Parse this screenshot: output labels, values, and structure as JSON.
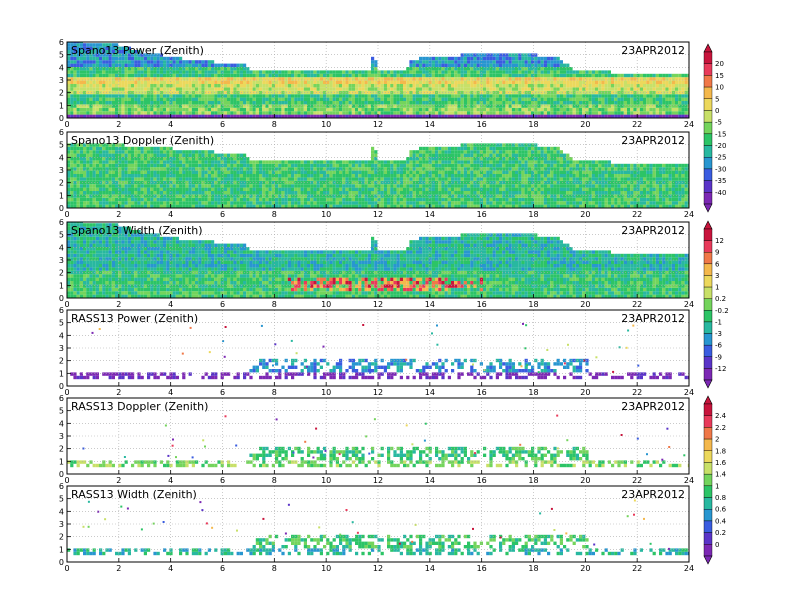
{
  "figure": {
    "date_label": "23APR2012"
  },
  "chart_data": [
    {
      "type": "heatmap",
      "title": "Spano13 Power (Zenith)",
      "date": "23APR2012",
      "x_ticks": [
        0,
        2,
        4,
        6,
        8,
        10,
        12,
        14,
        16,
        18,
        20,
        22,
        24
      ],
      "y_ticks": [
        0,
        1,
        2,
        3,
        4,
        5,
        6
      ],
      "xlim": [
        0,
        24
      ],
      "ylim": [
        0,
        6
      ],
      "grid": true,
      "colorbar_ticks": [
        "20",
        "15",
        "10",
        "5",
        "0",
        "-5",
        "-15",
        "-20",
        "-25",
        "-30",
        "-35",
        "-40"
      ],
      "colorbar_colors": [
        "#c8143c",
        "#e83a5a",
        "#f07848",
        "#f4b84c",
        "#ecd85c",
        "#c8e068",
        "#74d45c",
        "#2cc466",
        "#28b8a0",
        "#2896d0",
        "#3a5ce0",
        "#5a34c8",
        "#7c28b4"
      ],
      "top_profile": [
        [
          0,
          6.0
        ],
        [
          1.8,
          5.7
        ],
        [
          3.0,
          5.0
        ],
        [
          3.8,
          4.8
        ],
        [
          4.5,
          4.5
        ],
        [
          5.5,
          4.3
        ],
        [
          6.8,
          4.2
        ],
        [
          7.0,
          3.6
        ],
        [
          11.6,
          3.6
        ],
        [
          11.8,
          5.2
        ],
        [
          11.9,
          3.6
        ],
        [
          13.0,
          3.6
        ],
        [
          13.2,
          4.5
        ],
        [
          15.0,
          4.8
        ],
        [
          16.0,
          5.0
        ],
        [
          18.5,
          4.8
        ],
        [
          19.0,
          4.5
        ],
        [
          19.5,
          3.6
        ],
        [
          22.0,
          3.4
        ],
        [
          24.0,
          3.3
        ]
      ],
      "bands": [
        {
          "y0": 0.0,
          "y1": 0.25,
          "level": 12
        },
        {
          "y0": 0.25,
          "y1": 1.0,
          "level": 6
        },
        {
          "y0": 1.0,
          "y1": 1.7,
          "level": 7
        },
        {
          "y0": 1.7,
          "y1": 2.6,
          "level": 5
        },
        {
          "y0": 2.6,
          "y1": 3.2,
          "level": 4
        },
        {
          "y0": 3.2,
          "y1": 4.0,
          "level": 7
        },
        {
          "y0": 4.0,
          "y1": 6.0,
          "level": 9
        }
      ]
    },
    {
      "type": "heatmap",
      "title": "Spano13 Doppler (Zenith)",
      "date": "23APR2012",
      "x_ticks": [
        0,
        2,
        4,
        6,
        8,
        10,
        12,
        14,
        16,
        18,
        20,
        22,
        24
      ],
      "y_ticks": [
        0,
        1,
        2,
        3,
        4,
        5,
        6
      ],
      "xlim": [
        0,
        24
      ],
      "ylim": [
        0,
        6
      ],
      "grid": true,
      "top_profile": [
        [
          0,
          5.0
        ],
        [
          1.8,
          4.9
        ],
        [
          3.0,
          4.7
        ],
        [
          4.5,
          4.5
        ],
        [
          5.5,
          4.3
        ],
        [
          6.8,
          4.2
        ],
        [
          7.0,
          3.6
        ],
        [
          11.6,
          3.6
        ],
        [
          11.8,
          5.2
        ],
        [
          11.9,
          3.6
        ],
        [
          13.0,
          3.6
        ],
        [
          13.2,
          4.5
        ],
        [
          15.0,
          4.8
        ],
        [
          16.0,
          5.0
        ],
        [
          18.5,
          4.8
        ],
        [
          19.0,
          4.5
        ],
        [
          19.5,
          3.6
        ],
        [
          22.0,
          3.4
        ],
        [
          24.0,
          3.3
        ]
      ],
      "bands": [
        {
          "y0": 0.0,
          "y1": 6.0,
          "level": 7
        }
      ]
    },
    {
      "type": "heatmap",
      "title": "Spano13 Width (Zenith)",
      "date": "23APR2012",
      "x_ticks": [
        0,
        2,
        4,
        6,
        8,
        10,
        12,
        14,
        16,
        18,
        20,
        22,
        24
      ],
      "y_ticks": [
        0,
        1,
        2,
        3,
        4,
        5,
        6
      ],
      "xlim": [
        0,
        24
      ],
      "ylim": [
        0,
        6
      ],
      "grid": true,
      "colorbar_ticks": [
        "12",
        "9",
        "6",
        "3",
        "1",
        "0.2",
        "-0.2",
        "-1",
        "-3",
        "-6",
        "-9",
        "-12"
      ],
      "colorbar_colors": [
        "#c8143c",
        "#e83a5a",
        "#f07848",
        "#f4b84c",
        "#ecd85c",
        "#c8e068",
        "#74d45c",
        "#2cc466",
        "#28b8a0",
        "#2896d0",
        "#3a5ce0",
        "#5a34c8",
        "#7c28b4"
      ],
      "top_profile": [
        [
          0,
          6.0
        ],
        [
          1.8,
          5.7
        ],
        [
          3.0,
          5.0
        ],
        [
          4.5,
          4.5
        ],
        [
          5.5,
          4.3
        ],
        [
          6.8,
          4.2
        ],
        [
          7.0,
          3.6
        ],
        [
          11.6,
          3.6
        ],
        [
          11.8,
          5.2
        ],
        [
          11.9,
          3.6
        ],
        [
          13.0,
          3.6
        ],
        [
          13.2,
          4.5
        ],
        [
          15.0,
          4.8
        ],
        [
          16.0,
          5.0
        ],
        [
          18.5,
          4.8
        ],
        [
          19.0,
          4.5
        ],
        [
          19.5,
          3.6
        ],
        [
          22.0,
          3.4
        ],
        [
          24.0,
          3.3
        ]
      ],
      "bands": [
        {
          "y0": 0.0,
          "y1": 2.0,
          "level": 7
        },
        {
          "y0": 2.0,
          "y1": 6.0,
          "level": 8
        }
      ],
      "hot_region": {
        "x0": 8.5,
        "x1": 16.0,
        "y0": 0.4,
        "y1": 1.6
      }
    },
    {
      "type": "heatmap",
      "title": "RASS13 Power (Zenith)",
      "date": "23APR2012",
      "x_ticks": [
        0,
        2,
        4,
        6,
        8,
        10,
        12,
        14,
        16,
        18,
        20,
        22,
        24
      ],
      "y_ticks": [
        0,
        1,
        2,
        3,
        4,
        5,
        6
      ],
      "xlim": [
        0,
        24
      ],
      "ylim": [
        0,
        6
      ],
      "grid": true,
      "top_profile": [
        [
          0,
          1.0
        ],
        [
          7.0,
          1.0
        ],
        [
          7.1,
          2.0
        ],
        [
          20.0,
          2.0
        ],
        [
          20.1,
          1.0
        ],
        [
          24.0,
          1.0
        ]
      ],
      "bands": [
        {
          "y0": 0.5,
          "y1": 1.0,
          "level": 12
        },
        {
          "y0": 1.0,
          "y1": 2.0,
          "level": 9
        }
      ]
    },
    {
      "type": "heatmap",
      "title": "RASS13 Doppler (Zenith)",
      "date": "23APR2012",
      "x_ticks": [
        0,
        2,
        4,
        6,
        8,
        10,
        12,
        14,
        16,
        18,
        20,
        22,
        24
      ],
      "y_ticks": [
        0,
        1,
        2,
        3,
        4,
        5,
        6
      ],
      "xlim": [
        0,
        24
      ],
      "ylim": [
        0,
        6
      ],
      "grid": true,
      "colorbar_ticks": [
        "2.4",
        "2.2",
        "2",
        "1.8",
        "1.6",
        "1.4",
        "1",
        "0.8",
        "0.6",
        "0.4",
        "0.2",
        "0"
      ],
      "colorbar_colors": [
        "#c8143c",
        "#e83a5a",
        "#f07848",
        "#f4b84c",
        "#ecd85c",
        "#c8e068",
        "#74d45c",
        "#2cc466",
        "#28b8a0",
        "#2896d0",
        "#3a5ce0",
        "#5a34c8",
        "#7c28b4"
      ],
      "top_profile": [
        [
          0,
          1.0
        ],
        [
          7.0,
          1.0
        ],
        [
          7.1,
          2.0
        ],
        [
          20.0,
          2.0
        ],
        [
          20.1,
          1.0
        ],
        [
          24.0,
          1.0
        ]
      ],
      "bands": [
        {
          "y0": 0.5,
          "y1": 1.0,
          "level": 6
        },
        {
          "y0": 1.0,
          "y1": 2.0,
          "level": 7
        }
      ]
    },
    {
      "type": "heatmap",
      "title": "RASS13 Width (Zenith)",
      "date": "23APR2012",
      "x_ticks": [
        0,
        2,
        4,
        6,
        8,
        10,
        12,
        14,
        16,
        18,
        20,
        22,
        24
      ],
      "y_ticks": [
        0,
        1,
        2,
        3,
        4,
        5,
        6
      ],
      "xlim": [
        0,
        24
      ],
      "ylim": [
        0,
        6
      ],
      "grid": true,
      "top_profile": [
        [
          0,
          1.0
        ],
        [
          7.0,
          1.0
        ],
        [
          7.1,
          2.0
        ],
        [
          20.0,
          2.0
        ],
        [
          20.1,
          1.0
        ],
        [
          24.0,
          1.0
        ]
      ],
      "bands": [
        {
          "y0": 0.5,
          "y1": 1.0,
          "level": 8
        },
        {
          "y0": 1.0,
          "y1": 2.0,
          "level": 7
        }
      ]
    }
  ]
}
